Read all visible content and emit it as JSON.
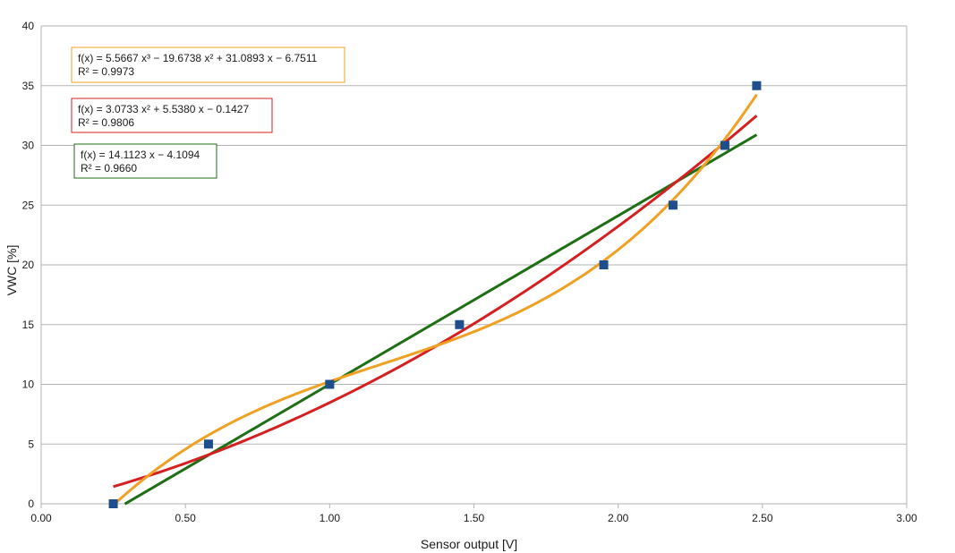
{
  "chart_data": {
    "type": "scatter",
    "xlabel": "Sensor output [V]",
    "ylabel": "VWC [%]",
    "xlim": [
      0,
      3
    ],
    "ylim": [
      0,
      40
    ],
    "x_ticks": [
      "0.00",
      "0.50",
      "1.00",
      "1.50",
      "2.00",
      "2.50",
      "3.00"
    ],
    "y_ticks": [
      "0",
      "5",
      "10",
      "15",
      "20",
      "25",
      "30",
      "35",
      "40"
    ],
    "grid": "horizontal",
    "points": {
      "color": "#1f4e8c",
      "x": [
        0.25,
        0.58,
        1.0,
        1.45,
        1.95,
        2.19,
        2.37,
        2.48
      ],
      "y": [
        0,
        5,
        10,
        15,
        20,
        25,
        30,
        35
      ]
    },
    "trendlines": [
      {
        "kind": "polynomial-3",
        "color": "#f0a022",
        "coefficients": [
          5.5667,
          -19.6738,
          31.0893,
          -6.7511
        ],
        "x_range": [
          0.25,
          2.48
        ],
        "equation": "f(x) = 5.5667 x³ − 19.6738 x² + 31.0893 x − 6.7511",
        "r2": "R² = 0.9973"
      },
      {
        "kind": "polynomial-2",
        "color": "#d42020",
        "coefficients": [
          3.0733,
          5.538,
          -0.1427
        ],
        "x_range": [
          0.25,
          2.48
        ],
        "equation": "f(x) = 3.0733 x² + 5.5380 x − 0.1427",
        "r2": "R² = 0.9806"
      },
      {
        "kind": "linear",
        "color": "#1e6e14",
        "coefficients": [
          14.1123,
          -4.1094
        ],
        "x_range": [
          0.29,
          2.48
        ],
        "equation": "f(x) = 14.1123 x − 4.1094",
        "r2": "R² = 0.9660"
      }
    ]
  }
}
